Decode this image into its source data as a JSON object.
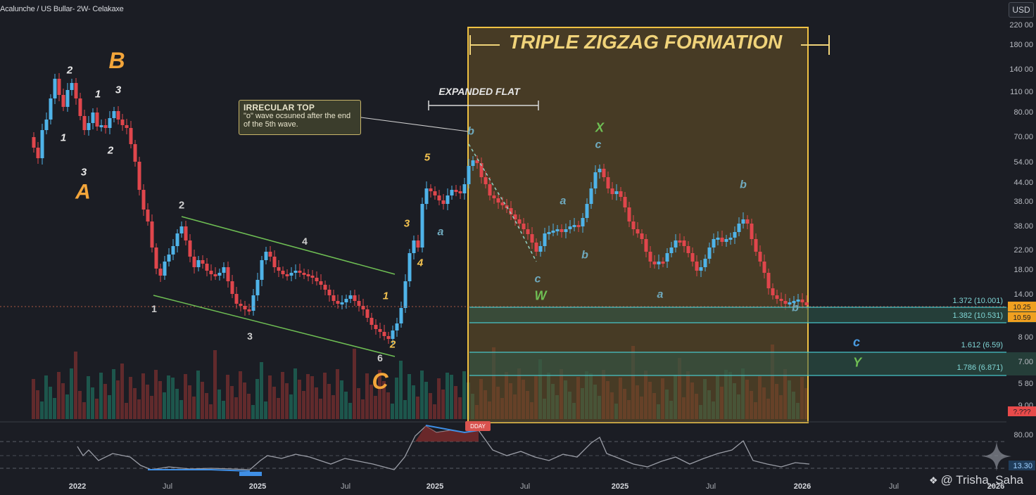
{
  "header": {
    "symbol_title": "Acalunche / US Bullar- 2W- Celakaxe",
    "currency_badge": "USD"
  },
  "watermark": {
    "text": "@ Trisha_Saha",
    "icon": "diamond-cluster-icon"
  },
  "callout": {
    "title": "IRRECULAR TOP",
    "body": "\"o\" wave ocsuned after the end of the 5th wave."
  },
  "colors": {
    "up": "#4fb3e8",
    "down": "#e0464c",
    "zone_border": "#f0c243",
    "zone_fill": "#6b5426",
    "channel": "#6fbf54",
    "fib_line": "#47c5c9",
    "wave_orange": "#f3a53a",
    "wave_teal": "#6fa9bd",
    "wave_green": "#6fbf54"
  },
  "chart_data": {
    "type": "candlestick",
    "title": "TRIPLE ZIGZAG FORMATION",
    "price_axis_labels": [
      "220 00",
      "180 00",
      "140 00",
      "110 00",
      "80.00",
      "70.00",
      "54.00",
      "44.00",
      "38.00",
      "38.00",
      "22.00",
      "18.00",
      "14.00",
      "8 00",
      "7.00",
      "5 80",
      "9.00"
    ],
    "time_axis_labels": [
      "2022",
      "Jul",
      "2025",
      "Jul",
      "2025",
      "Jul",
      "2025",
      "Jul",
      "2026",
      "Jul",
      "2026"
    ],
    "current_price_labels": [
      "10.25",
      "10.59",
      "?.???"
    ],
    "rsi_axis_labels": [
      "80.00",
      "13.30"
    ],
    "rsi_marker": "DDAY",
    "annotations": {
      "expanded_flat": "EXPANDED FLAT",
      "waves": [
        {
          "text": "B",
          "style": "orange-big"
        },
        {
          "text": "A",
          "style": "orange-big"
        },
        {
          "text": "C",
          "style": "orange-big"
        },
        {
          "text": "2",
          "style": "white"
        },
        {
          "text": "1",
          "style": "white"
        },
        {
          "text": "3",
          "style": "white"
        },
        {
          "text": "1",
          "style": "white"
        },
        {
          "text": "2",
          "style": "white"
        },
        {
          "text": "3",
          "style": "white"
        },
        {
          "text": "2",
          "style": "gray"
        },
        {
          "text": "1",
          "style": "gray"
        },
        {
          "text": "4",
          "style": "gray"
        },
        {
          "text": "3",
          "style": "gray"
        },
        {
          "text": "6",
          "style": "gray"
        },
        {
          "text": "5",
          "style": "yellow"
        },
        {
          "text": "3",
          "style": "yellow"
        },
        {
          "text": "4",
          "style": "yellow"
        },
        {
          "text": "1",
          "style": "yellow"
        },
        {
          "text": "2",
          "style": "yellow"
        },
        {
          "text": "a",
          "style": "teal"
        },
        {
          "text": "b",
          "style": "teal"
        },
        {
          "text": "a",
          "style": "teal"
        },
        {
          "text": "c",
          "style": "teal"
        },
        {
          "text": "b",
          "style": "teal"
        },
        {
          "text": "c",
          "style": "teal"
        },
        {
          "text": "a",
          "style": "teal"
        },
        {
          "text": "b",
          "style": "teal"
        },
        {
          "text": "b",
          "style": "teal"
        },
        {
          "text": "W",
          "style": "green"
        },
        {
          "text": "X",
          "style": "green"
        },
        {
          "text": "Y",
          "style": "green"
        },
        {
          "text": "c",
          "style": "blue"
        }
      ]
    },
    "fib_levels": [
      {
        "ratio": "1.372",
        "price": "(10.001)"
      },
      {
        "ratio": "1.382",
        "price": "(10.531)"
      },
      {
        "ratio": "1.612",
        "price": "(6.59)"
      },
      {
        "ratio": "1.786",
        "price": "(6.871)"
      }
    ]
  }
}
